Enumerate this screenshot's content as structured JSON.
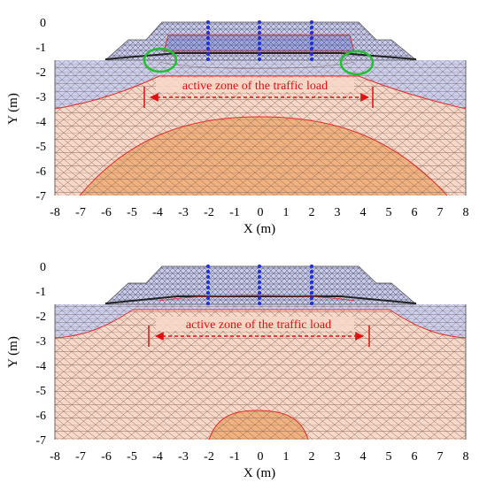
{
  "panels": [
    {
      "id": "top",
      "xlabel": "X (m)",
      "ylabel": "Y (m)",
      "x_ticks": [
        "-8",
        "-7",
        "-6",
        "-5",
        "-4",
        "-3",
        "-2",
        "-1",
        "0",
        "1",
        "2",
        "3",
        "4",
        "5",
        "6",
        "7",
        "8"
      ],
      "y_ticks": [
        "0",
        "-1",
        "-2",
        "-3",
        "-4",
        "-5",
        "-6",
        "-7"
      ],
      "annotation": "active zone of the traffic load",
      "markers": [
        "green-ellipse-left",
        "green-ellipse-right"
      ]
    },
    {
      "id": "bottom",
      "xlabel": "X (m)",
      "ylabel": "Y (m)",
      "x_ticks": [
        "-8",
        "-7",
        "-6",
        "-5",
        "-4",
        "-3",
        "-2",
        "-1",
        "0",
        "1",
        "2",
        "3",
        "4",
        "5",
        "6",
        "7",
        "8"
      ],
      "y_ticks": [
        "0",
        "-1",
        "-2",
        "-3",
        "-4",
        "-5",
        "-6",
        "-7"
      ],
      "annotation": "active zone of the traffic load",
      "markers": []
    }
  ],
  "colors": {
    "embankment": "#c9cbe8",
    "ballast_core": "#9da6e3",
    "soil": "#f8d8c8",
    "core_zone": "#f2b27f",
    "mesh_line": "#555566",
    "boundary": "#e03030",
    "annotation": "#e01010",
    "marker": "#22c032",
    "sensor": "#1a2ee0"
  }
}
